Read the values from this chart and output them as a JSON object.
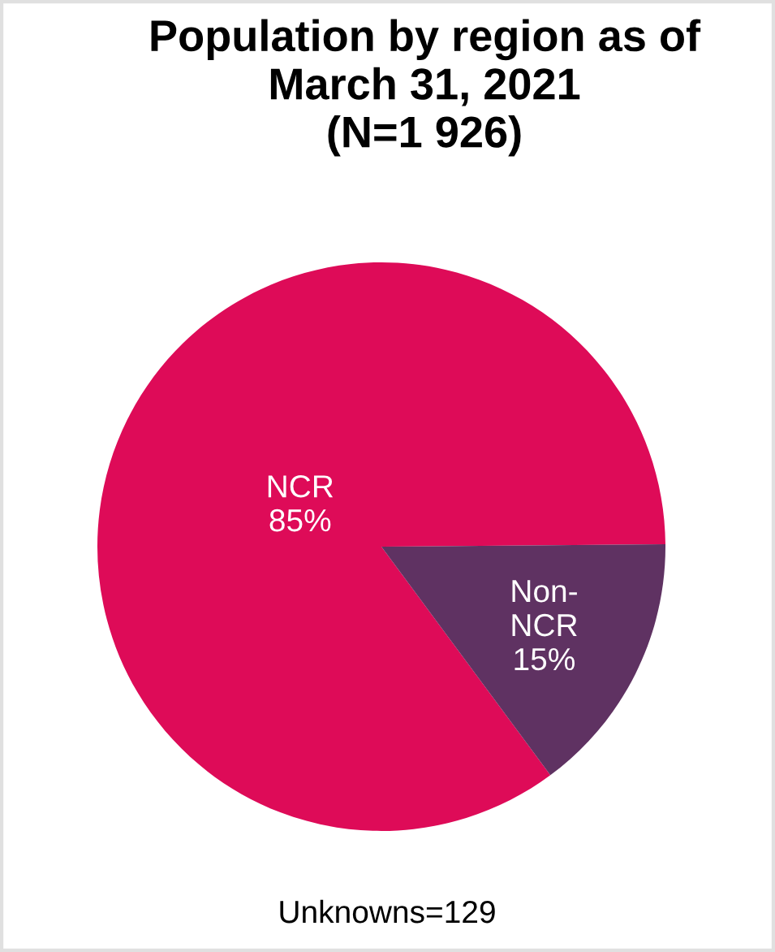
{
  "chart_data": {
    "type": "pie",
    "title": "Population by region as of\nMarch 31, 2021\n(N=1 926)",
    "categories": [
      "NCR",
      "Non-NCR"
    ],
    "values": [
      85,
      15
    ],
    "colors": [
      "#de0b58",
      "#5f3262"
    ],
    "value_labels": [
      "85%",
      "15%"
    ],
    "annotations": [
      "Unknowns=129"
    ]
  }
}
